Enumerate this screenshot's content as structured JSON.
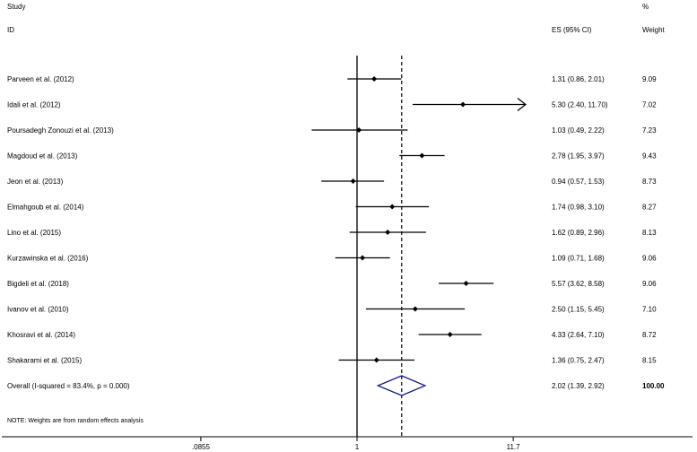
{
  "header": {
    "study_label": "Study",
    "id_label": "ID",
    "es_label": "ES (95% CI)",
    "pct_label": "%",
    "weight_label": "Weight"
  },
  "note": "NOTE: Weights are from random effects analysis",
  "chart_data": {
    "type": "forest",
    "x_scale": "log",
    "xlim": [
      0.0855,
      11.7
    ],
    "x_ticks": [
      {
        "value": 0.0855,
        "label": ".0855"
      },
      {
        "value": 1,
        "label": "1"
      },
      {
        "value": 11.7,
        "label": "11.7"
      }
    ],
    "null_line": 1,
    "overall_line": 2.02,
    "studies": [
      {
        "label": "Parveen et al. (2012)",
        "es": 1.31,
        "lo": 0.86,
        "hi": 2.01,
        "es_text": "1.31 (0.86, 2.01)",
        "weight": "9.09"
      },
      {
        "label": "Idali et al. (2012)",
        "es": 5.3,
        "lo": 2.4,
        "hi": 11.7,
        "es_text": "5.30 (2.40, 11.70)",
        "weight": "7.02",
        "arrow_right": true
      },
      {
        "label": "Poursadegh Zonouzi et al. (2013)",
        "es": 1.03,
        "lo": 0.49,
        "hi": 2.22,
        "es_text": "1.03 (0.49, 2.22)",
        "weight": "7.23"
      },
      {
        "label": "Magdoud et al. (2013)",
        "es": 2.78,
        "lo": 1.95,
        "hi": 3.97,
        "es_text": "2.78 (1.95, 3.97)",
        "weight": "9.43"
      },
      {
        "label": "Jeon et al. (2013)",
        "es": 0.94,
        "lo": 0.57,
        "hi": 1.53,
        "es_text": "0.94 (0.57, 1.53)",
        "weight": "8.73"
      },
      {
        "label": "Elmahgoub et al. (2014)",
        "es": 1.74,
        "lo": 0.98,
        "hi": 3.1,
        "es_text": "1.74 (0.98, 3.10)",
        "weight": "8.27"
      },
      {
        "label": "Lino et al. (2015)",
        "es": 1.62,
        "lo": 0.89,
        "hi": 2.96,
        "es_text": "1.62 (0.89, 2.96)",
        "weight": "8.13"
      },
      {
        "label": "Kurzawinska et al. (2016)",
        "es": 1.09,
        "lo": 0.71,
        "hi": 1.68,
        "es_text": "1.09 (0.71, 1.68)",
        "weight": "9.06"
      },
      {
        "label": "Bigdeli et al. (2018)",
        "es": 5.57,
        "lo": 3.62,
        "hi": 8.58,
        "es_text": "5.57 (3.62, 8.58)",
        "weight": "9.06"
      },
      {
        "label": "Ivanov et al. (2010)",
        "es": 2.5,
        "lo": 1.15,
        "hi": 5.45,
        "es_text": "2.50 (1.15, 5.45)",
        "weight": "7.10"
      },
      {
        "label": "Khosravi et al. (2014)",
        "es": 4.33,
        "lo": 2.64,
        "hi": 7.1,
        "es_text": "4.33 (2.64, 7.10)",
        "weight": "8.72"
      },
      {
        "label": "Shakarami et al. (2015)",
        "es": 1.36,
        "lo": 0.75,
        "hi": 2.47,
        "es_text": "1.36 (0.75, 2.47)",
        "weight": "8.15"
      }
    ],
    "overall": {
      "label": "Overall  (I-squared = 83.4%, p = 0.000)",
      "es": 2.02,
      "lo": 1.39,
      "hi": 2.92,
      "es_text": "2.02 (1.39, 2.92)",
      "weight": "100.00"
    }
  }
}
